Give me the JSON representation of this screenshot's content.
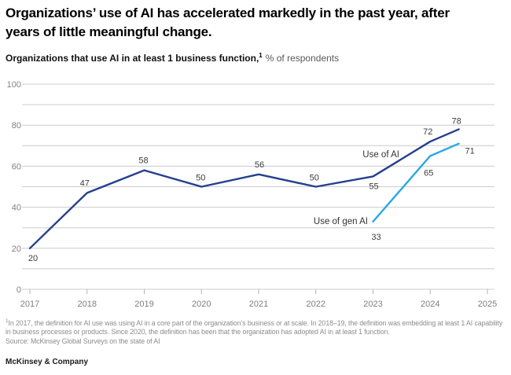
{
  "header": {
    "title_line1": "Organizations’ use of AI has accelerated markedly in the past year, after",
    "title_line2": "years of little meaningful change.",
    "subtitle_bold": "Organizations that use AI in at least 1 business function,",
    "subtitle_superscript": "1",
    "subtitle_rest": "% of respondents"
  },
  "chart_data": {
    "type": "line",
    "title": "Organizations that use AI in at least 1 business function, % of respondents",
    "xlabel": "",
    "ylabel": "% of respondents",
    "x_ticks": [
      2017,
      2018,
      2019,
      2020,
      2021,
      2022,
      2023,
      2024,
      2025
    ],
    "y_ticks": [
      0,
      20,
      40,
      60,
      80,
      100
    ],
    "ylim": [
      0,
      100
    ],
    "grid": "horizontal lines every 10, light gray",
    "legend_position": "inline annotations next to lines",
    "colors": {
      "use_of_ai": "#24408E",
      "use_of_gen_ai": "#2BA8E1",
      "gridline": "#cccccc",
      "axis_text": "#808080",
      "value_text": "#3c3c3c"
    },
    "series": [
      {
        "name": "Use of AI",
        "color": "#24408E",
        "x": [
          2017,
          2018,
          2019,
          2020,
          2021,
          2022,
          2023,
          2024,
          2024.5
        ],
        "values": [
          20,
          47,
          58,
          50,
          56,
          50,
          55,
          72,
          78
        ],
        "label_offsets": [
          [
            4,
            16
          ],
          [
            -3,
            -9
          ],
          [
            -1,
            -9
          ],
          [
            -1,
            -8
          ],
          [
            1,
            -9
          ],
          [
            -2,
            -8
          ],
          [
            1,
            16
          ],
          [
            -3,
            -9
          ],
          [
            -3,
            -7
          ]
        ]
      },
      {
        "name": "Use of gen AI",
        "color": "#2BA8E1",
        "x": [
          2023,
          2024,
          2024.5
        ],
        "values": [
          33,
          65,
          71
        ],
        "label_offsets": [
          [
            4,
            23
          ],
          [
            -2,
            25
          ],
          [
            14,
            13
          ]
        ]
      }
    ],
    "annotations": [
      {
        "text": "Use of AI",
        "x": 2023.46,
        "y": 64.4,
        "align": "end"
      },
      {
        "text": "Use of gen AI",
        "x": 2022.91,
        "y": 31.8,
        "align": "end"
      }
    ]
  },
  "footnote": {
    "superscript": "1",
    "text": "In 2017, the definition for AI use was using AI in a core part of the organization’s business or at scale. In 2018–19, the definition was embedding at least 1 AI capability in business processes or products. Since 2020, the definition has been that the organization has adopted AI in at least 1 function.",
    "source": "Source: McKinsey Global Surveys on the state of AI"
  },
  "footer": {
    "brand": "McKinsey & Company"
  }
}
